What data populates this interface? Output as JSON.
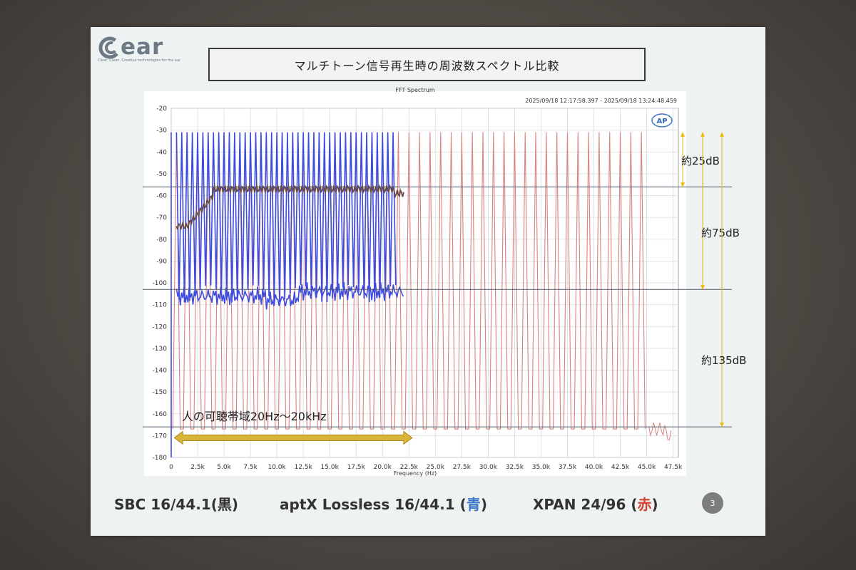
{
  "slide": {
    "logo_word": "ear",
    "logo_tagline": "Clear, Clean, Creative technologies for the ear",
    "title": "マルチトーン信号再生時の周波数スペクトル比較",
    "page_number": "3",
    "caption": {
      "sbc_label": "SBC 16/44.1(",
      "sbc_color_word": "黒",
      "sbc_close": ")",
      "aptx_label": "aptX Lossless 16/44.1 (",
      "aptx_color_word": "青",
      "aptx_close": ")",
      "xpan_label": "XPAN 24/96 (",
      "xpan_color_word": "赤",
      "xpan_close": ")"
    }
  },
  "colors": {
    "xpan": "#d9827f",
    "aptx": "#3c4be0",
    "sbc": "#6b4b46",
    "ref_line": "#505a66",
    "arrow": "#e8b800",
    "band_arrow": "#d9b43a"
  },
  "chart_data": {
    "type": "line",
    "title": "FFT Spectrum",
    "timestamp": "2025/09/18 12:17:58.397 - 2025/09/18 13:24:48.459",
    "xlabel": "Frequency (Hz)",
    "ylabel": "",
    "xlim": [
      0,
      48000
    ],
    "ylim": [
      -180,
      -20
    ],
    "y_ticks": [
      "-20",
      "-30",
      "-40",
      "-50",
      "-60",
      "-70",
      "-80",
      "-90",
      "-100",
      "-110",
      "-120",
      "-130",
      "-140",
      "-150",
      "-160",
      "-170",
      "-180"
    ],
    "x_ticks": [
      "0",
      "2.5k",
      "5.0k",
      "7.5k",
      "10.0k",
      "12.5k",
      "15.0k",
      "17.5k",
      "20.0k",
      "22.5k",
      "25.0k",
      "27.5k",
      "30.0k",
      "32.5k",
      "35.0k",
      "37.5k",
      "40.0k",
      "42.5k",
      "45.0k",
      "47.5k"
    ],
    "grid": true,
    "badge": "AP",
    "series": [
      {
        "name": "XPAN 24/96",
        "tone_peak_db": -31,
        "tone_floor_db": -167,
        "tone_range_hz": [
          500,
          45000
        ],
        "tone_spacing_hz": 1000
      },
      {
        "name": "aptX Lossless 16/44.1",
        "tone_peak_db": -31,
        "noise_floor_db": -105,
        "range_hz": [
          500,
          22000
        ]
      },
      {
        "name": "SBC 16/44.1",
        "tone_peak_db": -31,
        "noise_floor_db": [
          -75,
          -55
        ],
        "range_hz": [
          500,
          22000
        ]
      }
    ],
    "reference_lines_db": [
      -56,
      -103,
      -166
    ],
    "annotations": [
      {
        "text": "約25dB",
        "from_db": -31,
        "to_db": -56
      },
      {
        "text": "約75dB",
        "from_db": -31,
        "to_db": -103
      },
      {
        "text": "約135dB",
        "from_db": -31,
        "to_db": -166
      },
      {
        "text": "人の可聴帯域20Hz～20kHz",
        "range_hz": [
          20,
          22000
        ]
      }
    ]
  }
}
